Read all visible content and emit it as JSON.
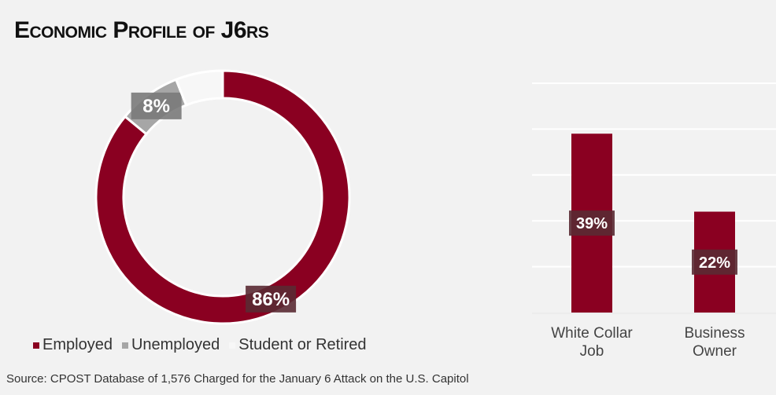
{
  "title": "Economic Profile of J6rs",
  "colors": {
    "employed": "#8a0021",
    "unemployed": "#a6a6a6",
    "student": "#f7f7f7",
    "label_bg": "#5a2a33",
    "grid": "#ffffff"
  },
  "source": "Source: CPOST Database of 1,576 Charged for the January 6 Attack on the U.S. Capitol",
  "chart_data": [
    {
      "type": "pie",
      "subtype": "donut",
      "categories": [
        "Employed",
        "Unemployed",
        "Student or Retired"
      ],
      "values": [
        86,
        8,
        6
      ],
      "data_labels": [
        "86%",
        "8%",
        ""
      ],
      "legend": {
        "placement": "bottom",
        "entries": [
          "Employed",
          "Unemployed",
          "Student or Retired"
        ]
      }
    },
    {
      "type": "bar",
      "categories": [
        "White Collar Job",
        "Business Owner"
      ],
      "category_lines": [
        [
          "White Collar",
          "Job"
        ],
        [
          "Business",
          "Owner"
        ]
      ],
      "values": [
        39,
        22
      ],
      "data_labels": [
        "39%",
        "22%"
      ],
      "ylim": [
        0,
        50
      ],
      "grid": true,
      "yticks_shown": false
    }
  ]
}
